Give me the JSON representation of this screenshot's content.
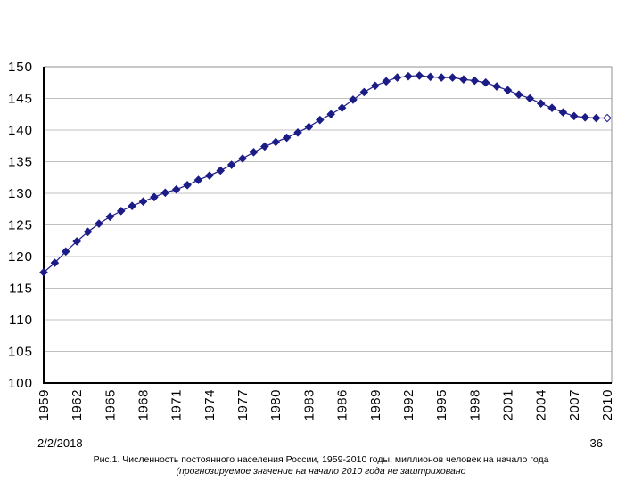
{
  "page": {
    "footer_date": "2/2/2018",
    "page_number": "36",
    "caption_line1": "Рис.1. Численность постоянного населения России, 1959-2010 годы, миллионов человек на начало года",
    "caption_line2": "(прогнозируемое значение на начало 2010 года не заштриховано"
  },
  "chart_data": {
    "type": "line",
    "title": "",
    "xlabel": "",
    "ylabel": "",
    "x": [
      1959,
      1960,
      1961,
      1962,
      1963,
      1964,
      1965,
      1966,
      1967,
      1968,
      1969,
      1970,
      1971,
      1972,
      1973,
      1974,
      1975,
      1976,
      1977,
      1978,
      1979,
      1980,
      1981,
      1982,
      1983,
      1984,
      1985,
      1986,
      1987,
      1988,
      1989,
      1990,
      1991,
      1992,
      1993,
      1994,
      1995,
      1996,
      1997,
      1998,
      1999,
      2000,
      2001,
      2002,
      2003,
      2004,
      2005,
      2006,
      2007,
      2008,
      2009,
      2010
    ],
    "series": [
      {
        "name": "Численность постоянного населения России, млн человек",
        "values": [
          117.5,
          119.0,
          120.8,
          122.4,
          123.9,
          125.2,
          126.3,
          127.2,
          128.0,
          128.7,
          129.4,
          130.1,
          130.6,
          131.3,
          132.1,
          132.8,
          133.6,
          134.5,
          135.5,
          136.5,
          137.4,
          138.1,
          138.8,
          139.6,
          140.5,
          141.6,
          142.5,
          143.5,
          144.8,
          146.0,
          147.0,
          147.7,
          148.3,
          148.5,
          148.6,
          148.4,
          148.3,
          148.3,
          148.0,
          147.8,
          147.5,
          146.9,
          146.3,
          145.6,
          145.0,
          144.2,
          143.5,
          142.8,
          142.2,
          142.0,
          141.9,
          141.9
        ]
      }
    ],
    "xtick_labels": [
      "1959",
      "1962",
      "1965",
      "1968",
      "1971",
      "1974",
      "1977",
      "1980",
      "1983",
      "1986",
      "1989",
      "1992",
      "1995",
      "1998",
      "2001",
      "2004",
      "2007",
      "2010"
    ],
    "yticks": [
      100,
      105,
      110,
      115,
      120,
      125,
      130,
      135,
      140,
      145,
      150
    ],
    "ylim": [
      100,
      150
    ],
    "grid": true,
    "legend": "none",
    "marker": "diamond",
    "last_point_hollow": true,
    "note": "последняя точка (2010, прогноз) — незакрашенный ромб",
    "colors": {
      "line": "#26268c",
      "marker_fill": "#1c1c86",
      "marker_last_fill": "#ffffff",
      "grid": "#c0c0c0",
      "plot_border": "#909090",
      "axis": "#000000",
      "text": "#000000"
    }
  }
}
